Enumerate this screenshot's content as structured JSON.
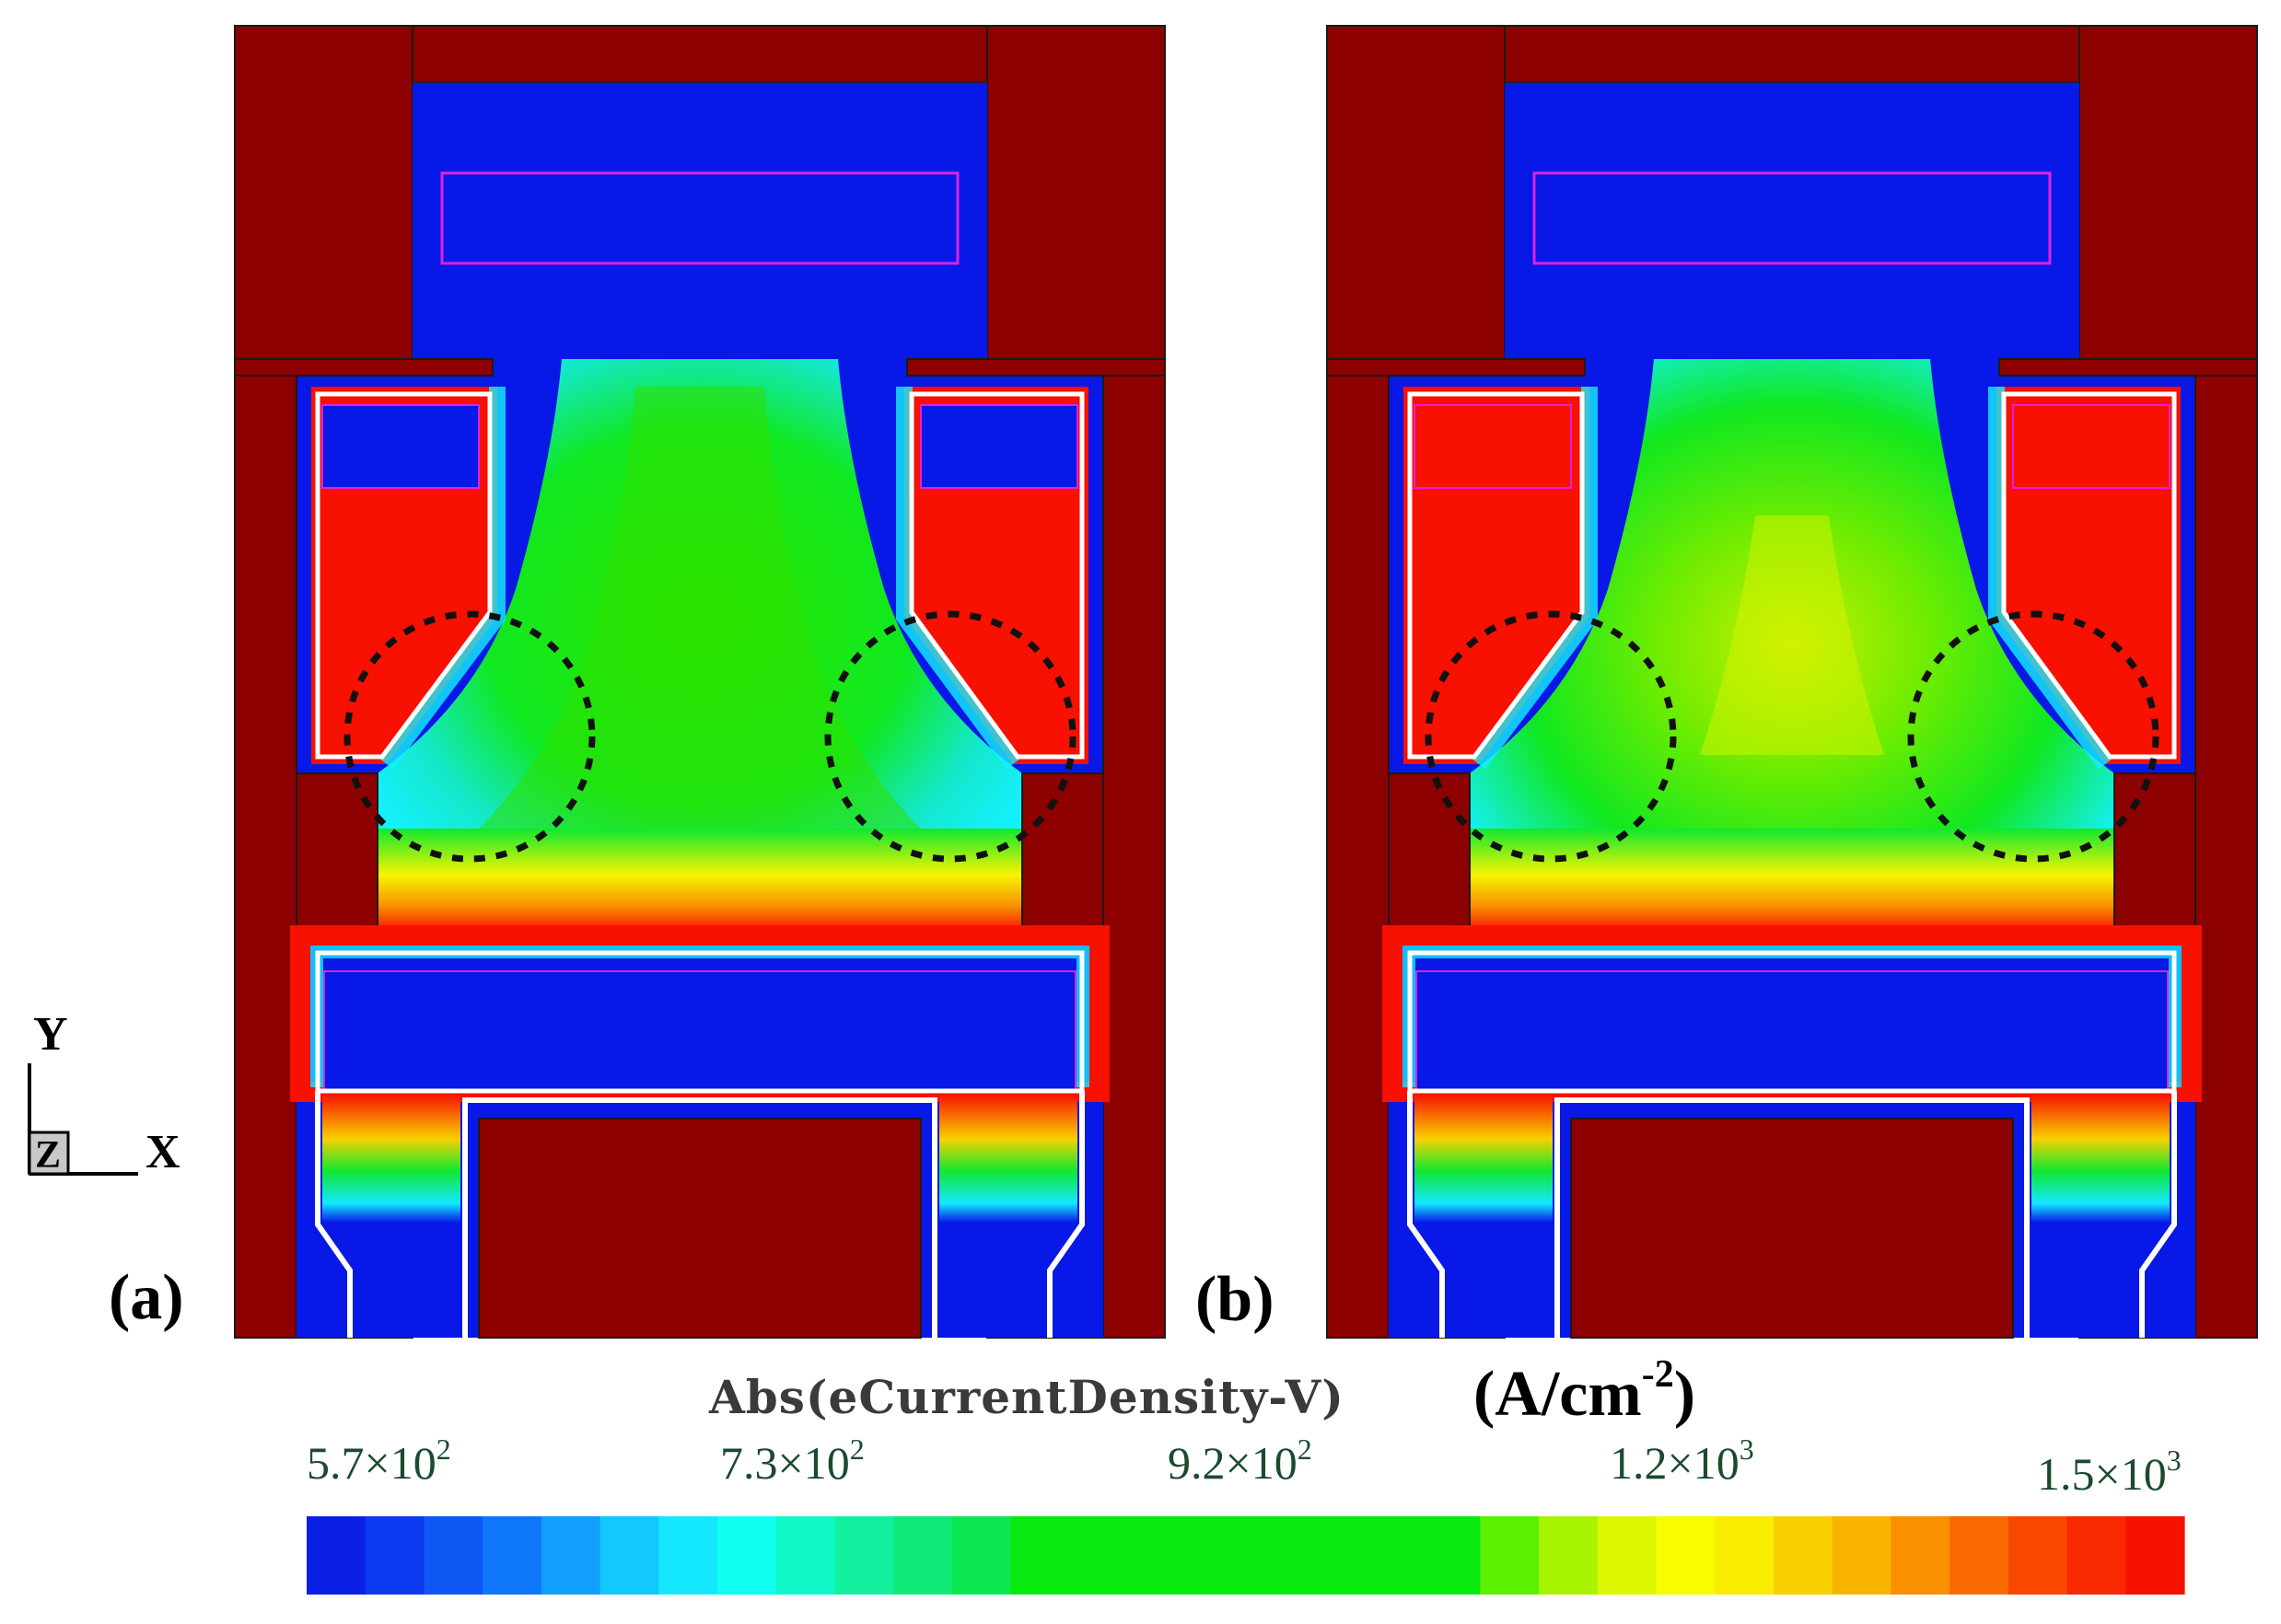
{
  "panels": [
    {
      "label": "(a)"
    },
    {
      "label": "(b)"
    }
  ],
  "axes_triad": {
    "y": "Y",
    "z": "Z",
    "x": "X"
  },
  "colorbar": {
    "title": "Abs(eCurrentDensity-V)",
    "unit_base": "(A/cm",
    "unit_exp": "-2",
    "unit_close": ")",
    "ticks": [
      {
        "mantissa": "5.7×10",
        "exp": "2"
      },
      {
        "mantissa": "7.3×10",
        "exp": "2"
      },
      {
        "mantissa": "9.2×10",
        "exp": "2"
      },
      {
        "mantissa": "1.2×10",
        "exp": "3"
      },
      {
        "mantissa": "1.5×10",
        "exp": "3"
      }
    ],
    "colors": [
      "#0b1fe6",
      "#0d3af0",
      "#0f58f5",
      "#0f78fa",
      "#10a0fc",
      "#12c8fd",
      "#14e8fe",
      "#0ffff0",
      "#10f8c8",
      "#12f0a0",
      "#10ea78",
      "#0be850",
      "#08ea10",
      "#08ea10",
      "#08ea10",
      "#08ea10",
      "#08ea10",
      "#08ea10",
      "#08ea10",
      "#08ea10",
      "#5af000",
      "#a8f400",
      "#dcf800",
      "#f8fc00",
      "#f8ec00",
      "#f8d000",
      "#f8b400",
      "#f89000",
      "#f86a00",
      "#f84800",
      "#f82800",
      "#f81000"
    ]
  },
  "colors": {
    "electrode": "#8c0000",
    "background_field": "#0818e6",
    "outline": "#1a1a1a",
    "marker_circle": "#111111",
    "insulator_white": "#ffffff",
    "magenta_line": "#e020e0"
  }
}
